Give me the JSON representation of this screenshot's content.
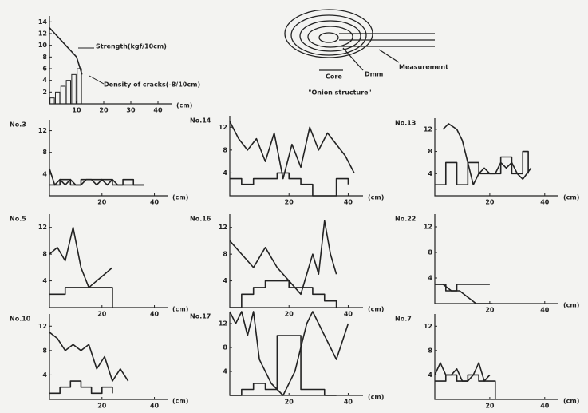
{
  "chart_data": [
    {
      "type": "line",
      "xlim": [
        0,
        45
      ],
      "ylim": [
        0,
        15
      ],
      "xticks": [
        10,
        20,
        30,
        40
      ],
      "yticks": [
        2,
        4,
        6,
        8,
        10,
        12,
        14
      ],
      "xlabel": "(cm)",
      "annotations": [
        "Strength(kgf/10cm)",
        "Density of cracks(-8/10cm)"
      ],
      "series": [
        {
          "kind": "line",
          "color": "#222",
          "x": [
            0,
            2,
            4,
            6,
            8,
            10,
            12
          ],
          "values": [
            13,
            12,
            11,
            10,
            9,
            8,
            5
          ]
        },
        {
          "kind": "bar",
          "color": "#222",
          "x": [
            1,
            3,
            5,
            7,
            9,
            11
          ],
          "values": [
            1,
            2,
            3,
            4,
            5,
            6
          ]
        }
      ]
    },
    {
      "type": "line",
      "title": "No.3",
      "xlim": [
        0,
        45
      ],
      "ylim": [
        0,
        14
      ],
      "xticks": [
        20,
        40
      ],
      "yticks": [
        4,
        8,
        12
      ],
      "xlabel": "(cm)",
      "series": [
        {
          "kind": "line",
          "color": "#222",
          "x": [
            0,
            2,
            4,
            6,
            8,
            10,
            12,
            14,
            16,
            18,
            20,
            22,
            24,
            26,
            28,
            30,
            32,
            34,
            36
          ],
          "values": [
            5,
            2,
            3,
            2,
            3,
            2,
            2,
            3,
            3,
            2,
            3,
            2,
            3,
            2,
            2,
            2,
            2,
            2,
            2
          ]
        },
        {
          "kind": "step",
          "color": "#222",
          "x": [
            0,
            4,
            8,
            12,
            16,
            20,
            24,
            28,
            32,
            36
          ],
          "values": [
            2,
            3,
            2,
            3,
            3,
            3,
            2,
            3,
            2,
            2
          ]
        }
      ]
    },
    {
      "type": "line",
      "title": "No.14",
      "xlim": [
        0,
        45
      ],
      "ylim": [
        0,
        14
      ],
      "xticks": [
        20,
        40
      ],
      "yticks": [
        4,
        8,
        12
      ],
      "xlabel": "(cm)",
      "series": [
        {
          "kind": "line",
          "color": "#222",
          "x": [
            0,
            3,
            6,
            9,
            12,
            15,
            18,
            21,
            24,
            27,
            30,
            33,
            36,
            39,
            42
          ],
          "values": [
            13,
            10,
            8,
            10,
            6,
            11,
            3,
            9,
            5,
            12,
            8,
            11,
            9,
            7,
            4
          ]
        },
        {
          "kind": "step",
          "color": "#222",
          "x": [
            0,
            4,
            8,
            12,
            16,
            20,
            24,
            28,
            32,
            36,
            40
          ],
          "values": [
            3,
            2,
            3,
            3,
            4,
            3,
            2,
            0,
            0,
            3,
            2
          ]
        }
      ]
    },
    {
      "type": "line",
      "title": "No.13",
      "xlim": [
        0,
        45
      ],
      "ylim": [
        0,
        14
      ],
      "xticks": [
        20,
        40
      ],
      "yticks": [
        4,
        8,
        12
      ],
      "xlabel": "(cm)",
      "series": [
        {
          "kind": "line",
          "color": "#222",
          "x": [
            3,
            5,
            8,
            10,
            12,
            14,
            16,
            18,
            20,
            22,
            24,
            26,
            28,
            30,
            32,
            35
          ],
          "values": [
            12,
            13,
            12,
            10,
            6,
            2,
            4,
            5,
            4,
            4,
            6,
            5,
            6,
            4,
            3,
            5
          ]
        },
        {
          "kind": "step",
          "color": "#222",
          "x": [
            0,
            4,
            8,
            12,
            16,
            20,
            24,
            28,
            32,
            34
          ],
          "values": [
            2,
            6,
            2,
            6,
            4,
            4,
            7,
            4,
            8,
            4
          ]
        }
      ]
    },
    {
      "type": "line",
      "title": "No.5",
      "xlim": [
        0,
        45
      ],
      "ylim": [
        0,
        14
      ],
      "xticks": [
        20,
        40
      ],
      "yticks": [
        4,
        8,
        12
      ],
      "xlabel": "(cm)",
      "series": [
        {
          "kind": "line",
          "color": "#222",
          "x": [
            0,
            3,
            6,
            9,
            12,
            15,
            18,
            21,
            24
          ],
          "values": [
            8,
            9,
            7,
            12,
            6,
            3,
            4,
            5,
            6
          ]
        },
        {
          "kind": "step",
          "color": "#222",
          "x": [
            0,
            6,
            12,
            18,
            22,
            24
          ],
          "values": [
            2,
            3,
            3,
            3,
            3,
            0
          ]
        }
      ]
    },
    {
      "type": "line",
      "title": "No.16",
      "xlim": [
        0,
        45
      ],
      "ylim": [
        0,
        14
      ],
      "xticks": [
        20,
        40
      ],
      "yticks": [
        4,
        8,
        12
      ],
      "xlabel": "(cm)",
      "series": [
        {
          "kind": "line",
          "color": "#222",
          "x": [
            0,
            4,
            8,
            12,
            16,
            20,
            24,
            28,
            30,
            32,
            34,
            36
          ],
          "values": [
            10,
            8,
            6,
            9,
            6,
            4,
            2,
            8,
            5,
            13,
            8,
            5
          ]
        },
        {
          "kind": "step",
          "color": "#222",
          "x": [
            0,
            4,
            8,
            12,
            16,
            20,
            24,
            28,
            32,
            36
          ],
          "values": [
            0,
            2,
            3,
            4,
            4,
            3,
            3,
            2,
            1,
            0
          ]
        }
      ]
    },
    {
      "type": "line",
      "title": "No.22",
      "xlim": [
        0,
        45
      ],
      "ylim": [
        0,
        14
      ],
      "xticks": [
        20,
        40
      ],
      "yticks": [
        4,
        8,
        12
      ],
      "xlabel": "(cm)",
      "series": [
        {
          "kind": "line",
          "color": "#222",
          "x": [
            0,
            3,
            6,
            9,
            12,
            15,
            18,
            21
          ],
          "values": [
            3,
            3,
            2,
            2,
            1,
            0,
            0,
            0
          ]
        },
        {
          "kind": "step",
          "color": "#222",
          "x": [
            0,
            4,
            8,
            12,
            16,
            20
          ],
          "values": [
            3,
            2,
            3,
            3,
            3,
            3
          ]
        }
      ]
    },
    {
      "type": "line",
      "title": "No.10",
      "xlim": [
        0,
        45
      ],
      "ylim": [
        0,
        14
      ],
      "xticks": [
        20,
        40
      ],
      "yticks": [
        4,
        8,
        12
      ],
      "xlabel": "(cm)",
      "series": [
        {
          "kind": "line",
          "color": "#222",
          "x": [
            0,
            3,
            6,
            9,
            12,
            15,
            18,
            21,
            24,
            27,
            30
          ],
          "values": [
            11,
            10,
            8,
            9,
            8,
            9,
            5,
            7,
            3,
            5,
            3
          ]
        },
        {
          "kind": "step",
          "color": "#222",
          "x": [
            0,
            4,
            8,
            12,
            16,
            20,
            24
          ],
          "values": [
            1,
            2,
            3,
            2,
            1,
            2,
            1
          ]
        }
      ]
    },
    {
      "type": "line",
      "title": "No.17",
      "xlim": [
        0,
        45
      ],
      "ylim": [
        0,
        14
      ],
      "xticks": [
        20,
        40
      ],
      "yticks": [
        4,
        8,
        12
      ],
      "xlabel": "(cm)",
      "series": [
        {
          "kind": "line",
          "color": "#222",
          "x": [
            0,
            2,
            4,
            6,
            8,
            10,
            14,
            18,
            22,
            26,
            28,
            32,
            36,
            40
          ],
          "values": [
            14,
            12,
            14,
            10,
            14,
            6,
            2,
            0,
            4,
            12,
            14,
            10,
            6,
            12
          ]
        },
        {
          "kind": "step",
          "color": "#222",
          "x": [
            0,
            4,
            8,
            12,
            16,
            20,
            24,
            28,
            32,
            36
          ],
          "values": [
            0,
            1,
            2,
            1,
            10,
            10,
            1,
            1,
            0,
            0
          ]
        }
      ]
    },
    {
      "type": "line",
      "title": "No.7",
      "xlim": [
        0,
        45
      ],
      "ylim": [
        0,
        14
      ],
      "xticks": [
        20,
        40
      ],
      "yticks": [
        4,
        8,
        12
      ],
      "xlabel": "(cm)",
      "series": [
        {
          "kind": "line",
          "color": "#222",
          "x": [
            0,
            2,
            4,
            6,
            8,
            10,
            12,
            14,
            16,
            18,
            20
          ],
          "values": [
            4,
            6,
            4,
            4,
            5,
            3,
            3,
            4,
            6,
            3,
            4
          ]
        },
        {
          "kind": "step",
          "color": "#222",
          "x": [
            0,
            4,
            8,
            12,
            16,
            20,
            22
          ],
          "values": [
            3,
            4,
            3,
            4,
            3,
            3,
            0
          ]
        }
      ]
    }
  ],
  "diagram": {
    "labels": [
      "Core",
      "Measurement",
      "Dmm"
    ],
    "caption": "\"Onion structure\""
  }
}
